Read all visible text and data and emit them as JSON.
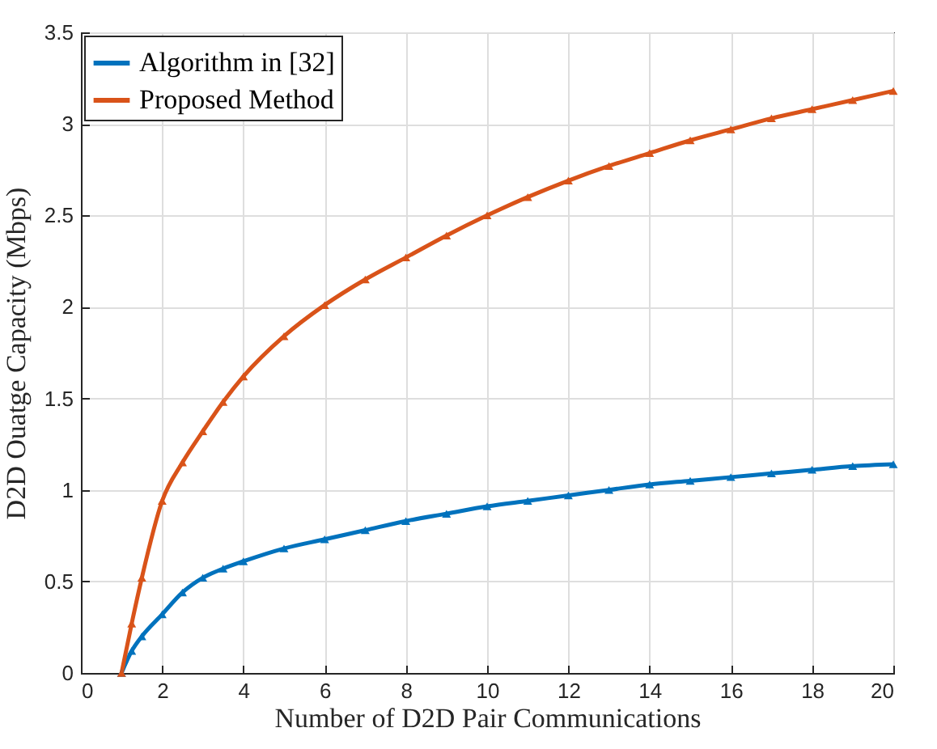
{
  "chart_data": {
    "type": "line",
    "xlabel": "Number of D2D Pair Communications",
    "ylabel": "D2D Ouatge Capacity (Mbps)",
    "x": [
      1,
      1.25,
      1.5,
      2,
      2.5,
      3,
      3.5,
      4,
      5,
      6,
      7,
      8,
      9,
      10,
      11,
      12,
      13,
      14,
      15,
      16,
      17,
      18,
      19,
      20
    ],
    "series": [
      {
        "name": "Algorithm in [32]",
        "color": "#0072bd",
        "values": [
          0,
          0.12,
          0.2,
          0.32,
          0.44,
          0.52,
          0.57,
          0.61,
          0.68,
          0.73,
          0.78,
          0.83,
          0.87,
          0.91,
          0.94,
          0.97,
          1.0,
          1.03,
          1.05,
          1.07,
          1.09,
          1.11,
          1.13,
          1.14
        ]
      },
      {
        "name": "Proposed Method",
        "color": "#d95319",
        "values": [
          0,
          0.27,
          0.52,
          0.94,
          1.15,
          1.32,
          1.48,
          1.62,
          1.84,
          2.01,
          2.15,
          2.27,
          2.39,
          2.5,
          2.6,
          2.69,
          2.77,
          2.84,
          2.91,
          2.97,
          3.03,
          3.08,
          3.13,
          3.18
        ]
      }
    ],
    "xlim": [
      0,
      20
    ],
    "xticks": [
      0,
      2,
      4,
      6,
      8,
      10,
      12,
      14,
      16,
      18,
      20
    ],
    "ylim": [
      0,
      3.5
    ],
    "yticks": [
      0,
      0.5,
      1,
      1.5,
      2,
      2.5,
      3,
      3.5
    ],
    "grid": true,
    "legend": "top left",
    "marker": "triangle",
    "line_style": "solid"
  }
}
